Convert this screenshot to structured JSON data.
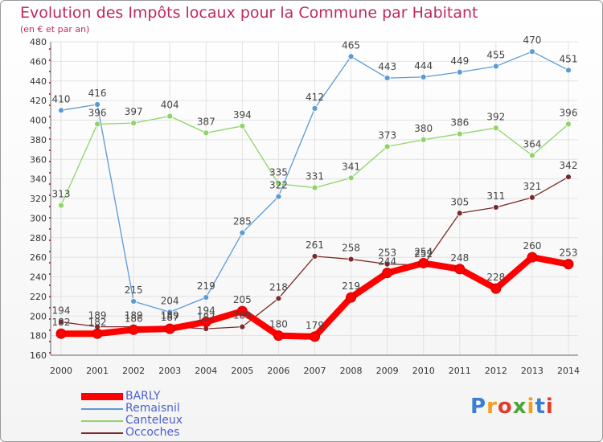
{
  "header": {
    "title": "Evolution des Impôts locaux pour la Commune par Habitant",
    "subtitle": "(en € et par an)"
  },
  "logo": {
    "text": "Proxiti",
    "colors": [
      "#3a7fd4",
      "#f0a020",
      "#e23c2c",
      "#4aa63a",
      "#f0a020",
      "#3a7fd4",
      "#e23c2c"
    ]
  },
  "chart_data": {
    "type": "line",
    "title": "Evolution des Impôts locaux pour la Commune par Habitant",
    "subtitle": "(en € et par an)",
    "x": [
      "2000",
      "2001",
      "2002",
      "2003",
      "2004",
      "2005",
      "2006",
      "2007",
      "2008",
      "2009",
      "2010",
      "2011",
      "2012",
      "2013",
      "2014"
    ],
    "ylim": [
      160,
      480
    ],
    "yticks": [
      160,
      180,
      200,
      220,
      240,
      260,
      280,
      300,
      320,
      340,
      360,
      380,
      400,
      420,
      440,
      460,
      480
    ],
    "grid": true,
    "legend": "bottom-left",
    "series": [
      {
        "name": "BARLY",
        "color": "#ff0000",
        "values": [
          182,
          182,
          186,
          187,
          194,
          205,
          180,
          179,
          219,
          244,
          254,
          248,
          228,
          260,
          253
        ],
        "labels": [
          "182",
          "182",
          "186",
          "187",
          "194",
          "205",
          "180",
          "179",
          "219",
          "244",
          "254",
          "248",
          "228",
          "260",
          "253"
        ]
      },
      {
        "name": "Remaisnil",
        "color": "#5b9bd5",
        "values": [
          410,
          416,
          215,
          204,
          219,
          285,
          322,
          412,
          465,
          443,
          444,
          449,
          455,
          470,
          451
        ],
        "labels": [
          "410",
          "416",
          "215",
          "204",
          "219",
          "285",
          "322",
          "412",
          "465",
          "443",
          "444",
          "449",
          "455",
          "470",
          "451"
        ]
      },
      {
        "name": "Canteleux",
        "color": "#8fd36a",
        "values": [
          313,
          396,
          397,
          404,
          387,
          394,
          335,
          331,
          341,
          373,
          380,
          386,
          392,
          364,
          396
        ],
        "labels": [
          "313",
          "396",
          "397",
          "404",
          "387",
          "394",
          "335",
          "331",
          "341",
          "373",
          "380",
          "386",
          "392",
          "364",
          "396"
        ]
      },
      {
        "name": "Occoches",
        "color": "#7b2a2a",
        "values": [
          194,
          189,
          189,
          189,
          187,
          189,
          218,
          261,
          258,
          253,
          252,
          305,
          311,
          321,
          342
        ],
        "labels": [
          "194",
          "189",
          "189",
          "189",
          "187",
          "189",
          "218",
          "261",
          "258",
          "253",
          "252",
          "305",
          "311",
          "321",
          "342"
        ]
      }
    ]
  }
}
